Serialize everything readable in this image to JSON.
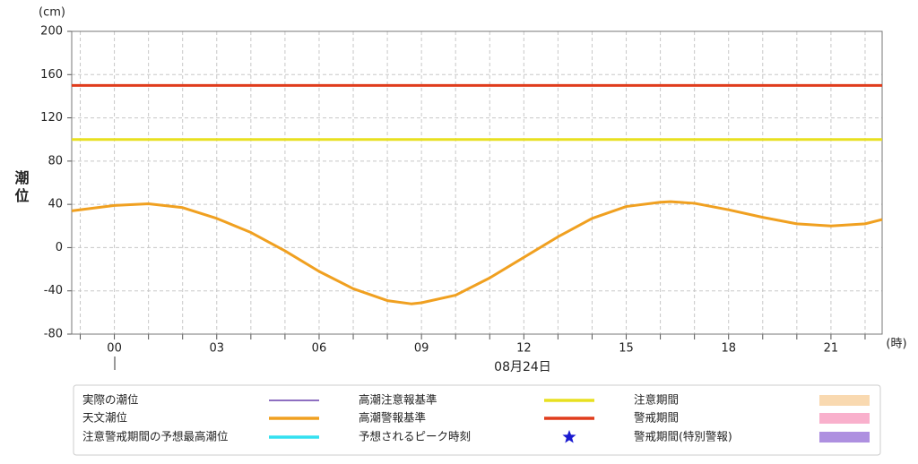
{
  "chart_data": {
    "type": "line",
    "y_unit": "(cm)",
    "y_label": "潮位",
    "x_unit": "(時)",
    "date_label": "08月24日",
    "xlim": [
      -1.25,
      22.5
    ],
    "ylim": [
      -80,
      200
    ],
    "yticks": [
      -80,
      -40,
      0,
      40,
      80,
      120,
      160,
      200
    ],
    "xticks": [
      {
        "value": 0,
        "label": "00"
      },
      {
        "value": 3,
        "label": "03"
      },
      {
        "value": 6,
        "label": "06"
      },
      {
        "value": 9,
        "label": "09"
      },
      12,
      15,
      18,
      21
    ],
    "x_minor_ticks": [
      -1,
      0,
      1,
      2,
      3,
      4,
      5,
      6,
      7,
      8,
      9,
      10,
      11,
      12,
      13,
      14,
      15,
      16,
      17,
      18,
      19,
      20,
      21,
      22
    ],
    "grid": true,
    "series": [
      {
        "name": "実際の潮位",
        "color": "#8e6fc1",
        "symbol": "line"
      },
      {
        "name": "天文潮位",
        "color": "#f0a020",
        "symbol": "line",
        "x": [
          -1.25,
          0,
          1,
          2,
          3,
          4,
          5,
          6,
          7,
          8,
          8.7,
          9,
          10,
          11,
          12,
          13,
          14,
          15,
          16,
          16.3,
          17,
          18,
          19,
          20,
          21,
          22,
          22.5
        ],
        "values": [
          34,
          39,
          40.5,
          37,
          27,
          14,
          -3,
          -22,
          -38,
          -49,
          -52,
          -51,
          -44,
          -28,
          -9,
          10,
          27,
          38,
          42,
          42.5,
          41,
          35,
          28,
          22,
          20,
          22,
          26
        ]
      },
      {
        "name": "注意警戒期間の予想最高潮位",
        "color": "#33e0f0",
        "symbol": "line"
      },
      {
        "name": "高潮注意報基準",
        "color": "#e8e020",
        "symbol": "line",
        "x": [
          -1.25,
          22.5
        ],
        "values": [
          100,
          100
        ]
      },
      {
        "name": "高潮警報基準",
        "color": "#e03c1c",
        "symbol": "line",
        "x": [
          -1.25,
          22.5
        ],
        "values": [
          150,
          150
        ]
      },
      {
        "name": "予想されるピーク時刻",
        "color": "#1a1ad0",
        "symbol": "star"
      },
      {
        "name": "注意期間",
        "color": "#f9d9b0",
        "symbol": "rect"
      },
      {
        "name": "警戒期間",
        "color": "#f9b0cc",
        "symbol": "rect"
      },
      {
        "name": "警戒期間(特別警報)",
        "color": "#ae90e0",
        "symbol": "rect"
      }
    ]
  }
}
